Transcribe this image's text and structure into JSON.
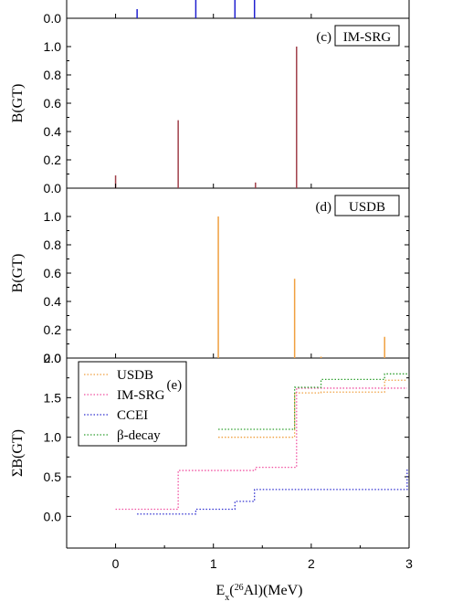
{
  "figure": {
    "x_axis_label_parts": {
      "e": "E",
      "x": "x",
      "open": "(",
      "mass": "26",
      "element": "Al)(MeV)"
    }
  },
  "chart_data": [
    {
      "panel": "top-partial",
      "type": "bar",
      "ylabel": "",
      "label": "",
      "ylim": [
        0,
        0.15
      ],
      "yticks": [
        "0.0"
      ],
      "color": "#2020d0",
      "x": [
        0.22,
        0.82,
        1.22,
        1.42
      ],
      "values": [
        0.03,
        0.06,
        0.1,
        0.15
      ]
    },
    {
      "panel": "c",
      "type": "bar",
      "ylabel": "B(GT)",
      "tag": "(c)",
      "label": "IM-SRG",
      "ylim": [
        0,
        1.2
      ],
      "yticks": [
        "0.0",
        "0.2",
        "0.4",
        "0.6",
        "0.8",
        "1.0"
      ],
      "color": "#a0404a",
      "x": [
        0.0,
        0.64,
        1.43,
        1.85
      ],
      "values": [
        0.09,
        0.48,
        0.04,
        1.0
      ]
    },
    {
      "panel": "d",
      "type": "bar",
      "ylabel": "B(GT)",
      "tag": "(d)",
      "label": "USDB",
      "ylim": [
        0,
        1.2
      ],
      "yticks": [
        "0.0",
        "0.2",
        "0.4",
        "0.6",
        "0.8",
        "1.0"
      ],
      "color": "#f0a040",
      "x": [
        1.05,
        1.83,
        2.1,
        2.75
      ],
      "values": [
        1.0,
        0.56,
        0.01,
        0.15
      ]
    },
    {
      "panel": "e",
      "type": "line",
      "ylabel": "ΣB(GT)",
      "tag": "(e)",
      "ylim": [
        -0.4,
        2.0
      ],
      "yticks": [
        "0.0",
        "0.5",
        "1.0",
        "1.5",
        "2.0"
      ],
      "xlim": [
        -0.5,
        3.0
      ],
      "xticks": [
        "0",
        "1",
        "2",
        "3"
      ],
      "legend_position": "top-left",
      "series": [
        {
          "name": "USDB",
          "color": "#f0a040",
          "x": [
            1.05,
            1.83,
            2.1,
            2.75,
            2.98
          ],
          "y": [
            1.0,
            1.56,
            1.57,
            1.72,
            1.72
          ]
        },
        {
          "name": "IM-SRG",
          "color": "#f050a0",
          "x": [
            0.0,
            0.64,
            1.43,
            1.85,
            2.98
          ],
          "y": [
            0.09,
            0.58,
            0.62,
            1.62,
            1.62
          ]
        },
        {
          "name": "CCEI",
          "color": "#3030d0",
          "x": [
            0.22,
            0.82,
            1.22,
            1.42,
            2.98
          ],
          "y": [
            0.03,
            0.09,
            0.19,
            0.34,
            0.6
          ]
        },
        {
          "name": "β-decay",
          "color": "#30a030",
          "x": [
            1.05,
            1.83,
            2.1,
            2.75,
            2.98
          ],
          "y": [
            1.1,
            1.63,
            1.73,
            1.8,
            1.8
          ]
        }
      ]
    }
  ]
}
